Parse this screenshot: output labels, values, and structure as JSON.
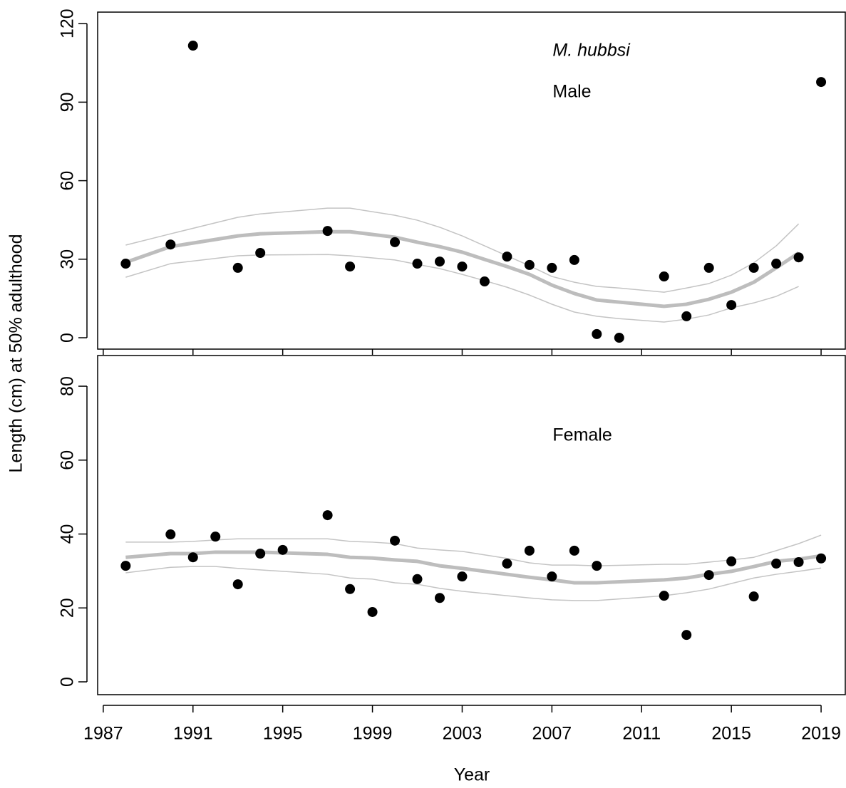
{
  "chart_data": [
    {
      "type": "scatter",
      "annotations": [
        "M. hubbsi",
        "Male"
      ],
      "ylabel": "Length (cm) at 50% adulthood",
      "xlim": [
        1986.75,
        2020.11
      ],
      "ylim": [
        -4.35,
        124.4
      ],
      "xticks": [
        1987,
        1991,
        1995,
        1999,
        2003,
        2007,
        2011,
        2015,
        2019
      ],
      "yticks": [
        0,
        30,
        60,
        90,
        120
      ],
      "color": "#000000",
      "x": [
        1988,
        1990,
        1991,
        1993,
        1994,
        1997,
        1998,
        2000,
        2001,
        2002,
        2003,
        2004,
        2005,
        2006,
        2007,
        2008,
        2009,
        2010,
        2012,
        2013,
        2014,
        2015,
        2016,
        2017,
        2018,
        2019
      ],
      "values": [
        28.3,
        35.6,
        111.6,
        26.7,
        32.4,
        40.8,
        27.2,
        36.5,
        28.3,
        29.1,
        27.2,
        21.5,
        31.0,
        27.8,
        26.7,
        29.7,
        1.4,
        0,
        23.4,
        8.2,
        26.7,
        12.5,
        26.7,
        28.3,
        30.7,
        97.7
      ],
      "fit": {
        "color": "#bdbdbd",
        "band_color": "#c4c4c4",
        "x": [
          1988,
          1990,
          1993,
          1994,
          1997,
          1998,
          2000,
          2001,
          2002,
          2003,
          2004,
          2005,
          2006,
          2007,
          2008,
          2009,
          2010,
          2012,
          2013,
          2014,
          2015,
          2016,
          2017,
          2018
        ],
        "values": [
          28.8,
          34.8,
          38.9,
          39.7,
          40.5,
          40.5,
          38.4,
          36.5,
          34.8,
          32.7,
          29.9,
          27.2,
          24.2,
          20.1,
          16.9,
          14.4,
          13.6,
          12.0,
          12.8,
          14.7,
          17.4,
          21.2,
          26.7,
          32.4
        ],
        "upper": [
          35.4,
          39.7,
          46.0,
          47.3,
          49.5,
          49.5,
          46.8,
          44.9,
          42.2,
          38.9,
          35.1,
          31.3,
          27.5,
          23.4,
          21.2,
          19.6,
          19.0,
          17.4,
          19.0,
          20.7,
          23.9,
          28.6,
          35.1,
          43.5
        ],
        "lower": [
          23.1,
          28.3,
          31.3,
          31.6,
          31.8,
          31.3,
          29.7,
          28.0,
          26.4,
          24.2,
          21.8,
          19.3,
          16.3,
          12.8,
          9.8,
          8.2,
          7.3,
          6.0,
          7.1,
          8.7,
          11.4,
          13.3,
          15.8,
          19.6
        ]
      }
    },
    {
      "type": "scatter",
      "annotations": [
        "Female"
      ],
      "xlabel": "Year",
      "xlim": [
        1986.75,
        2020.11
      ],
      "ylim": [
        -3.47,
        88.3
      ],
      "xticks": [
        1987,
        1991,
        1995,
        1999,
        2003,
        2007,
        2011,
        2015,
        2019
      ],
      "yticks": [
        0,
        20,
        40,
        60,
        80
      ],
      "color": "#000000",
      "x": [
        1988,
        1990,
        1991,
        1992,
        1993,
        1994,
        1995,
        1997,
        1998,
        1999,
        2000,
        2001,
        2002,
        2003,
        2005,
        2006,
        2007,
        2008,
        2009,
        2012,
        2013,
        2014,
        2015,
        2016,
        2017,
        2018,
        2019
      ],
      "values": [
        31.4,
        39.9,
        33.7,
        39.3,
        26.4,
        34.7,
        35.7,
        45.1,
        25.1,
        18.9,
        38.2,
        27.8,
        22.7,
        28.5,
        32.0,
        35.5,
        28.5,
        35.5,
        31.4,
        23.3,
        12.7,
        28.9,
        32.6,
        23.1,
        32.0,
        32.4,
        33.4
      ],
      "fit": {
        "color": "#bdbdbd",
        "band_color": "#c4c4c4",
        "x": [
          1988,
          1990,
          1991,
          1992,
          1993,
          1994,
          1995,
          1997,
          1998,
          1999,
          2000,
          2001,
          2002,
          2003,
          2005,
          2006,
          2007,
          2008,
          2009,
          2012,
          2013,
          2014,
          2015,
          2016,
          2017,
          2018,
          2019
        ],
        "values": [
          33.7,
          34.7,
          34.7,
          35.1,
          35.1,
          35.1,
          34.9,
          34.5,
          33.7,
          33.5,
          33.0,
          32.6,
          31.4,
          30.7,
          29.1,
          28.3,
          27.6,
          26.8,
          26.8,
          27.6,
          28.1,
          29.1,
          29.9,
          31.2,
          32.6,
          33.2,
          34.1
        ],
        "upper": [
          37.8,
          37.8,
          38.0,
          38.4,
          38.7,
          38.7,
          38.7,
          38.7,
          38.0,
          37.8,
          37.4,
          36.2,
          35.7,
          35.3,
          33.4,
          32.2,
          31.6,
          31.6,
          31.4,
          31.8,
          31.8,
          32.4,
          33.0,
          33.7,
          35.5,
          37.4,
          39.7
        ],
        "lower": [
          29.5,
          31.0,
          31.2,
          31.2,
          30.7,
          30.3,
          29.9,
          29.1,
          28.1,
          27.8,
          26.8,
          26.4,
          25.3,
          24.5,
          23.3,
          22.7,
          22.2,
          22.0,
          22.0,
          23.3,
          24.1,
          25.1,
          26.6,
          28.1,
          29.1,
          29.9,
          30.8
        ]
      }
    }
  ]
}
